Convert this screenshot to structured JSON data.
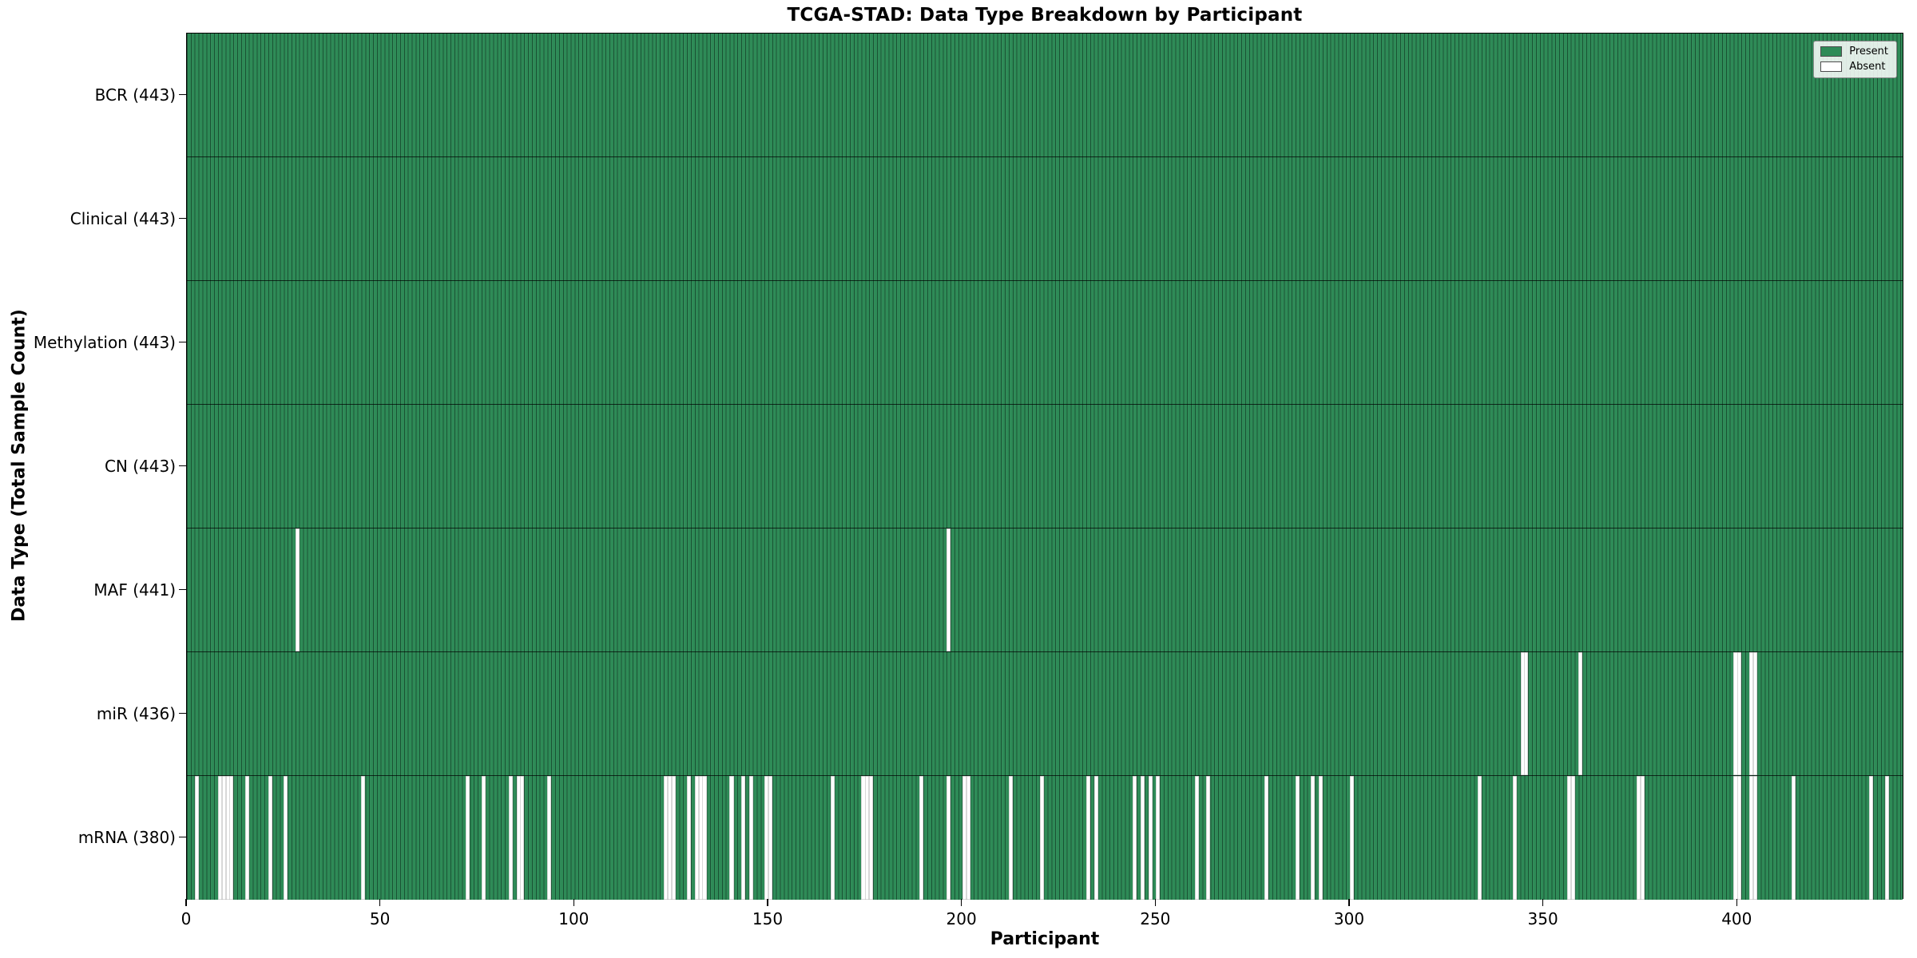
{
  "title": "TCGA-STAD: Data Type Breakdown by Participant",
  "xlabel": "Participant",
  "ylabel": "Data Type (Total Sample Count)",
  "legend": {
    "present_label": "Present",
    "absent_label": "Absent",
    "position": "upper right"
  },
  "colors": {
    "present": "#2E8B57",
    "absent": "#FFFFFF",
    "bar_edge": "#10341F",
    "spine": "#000000"
  },
  "chart_data": {
    "type": "heatmap",
    "title": "TCGA-STAD: Data Type Breakdown by Participant",
    "xlabel": "Participant",
    "ylabel": "Data Type (Total Sample Count)",
    "n_participants": 443,
    "x_range": [
      0,
      443
    ],
    "x_ticks": [
      0,
      50,
      100,
      150,
      200,
      250,
      300,
      350,
      400
    ],
    "grid": false,
    "legend_entries": [
      "Present",
      "Absent"
    ],
    "legend_position": "upper right",
    "cell_states": {
      "present": 1,
      "absent": 0
    },
    "rows": [
      {
        "name": "BCR",
        "label": "BCR (443)",
        "present_count": 443,
        "absent_participants": []
      },
      {
        "name": "Clinical",
        "label": "Clinical (443)",
        "present_count": 443,
        "absent_participants": []
      },
      {
        "name": "Methylation",
        "label": "Methylation (443)",
        "present_count": 443,
        "absent_participants": []
      },
      {
        "name": "CN",
        "label": "CN (443)",
        "present_count": 443,
        "absent_participants": []
      },
      {
        "name": "MAF",
        "label": "MAF (441)",
        "present_count": 441,
        "absent_participants": [
          28,
          196
        ]
      },
      {
        "name": "miR",
        "label": "miR (436)",
        "present_count": 436,
        "absent_participants": [
          344,
          345,
          359,
          399,
          400,
          403,
          404
        ]
      },
      {
        "name": "mRNA",
        "label": "mRNA (380)",
        "present_count": 380,
        "absent_participants": [
          2,
          8,
          9,
          10,
          11,
          15,
          21,
          25,
          45,
          72,
          76,
          83,
          85,
          86,
          93,
          123,
          124,
          125,
          129,
          131,
          132,
          133,
          140,
          143,
          145,
          149,
          150,
          166,
          174,
          175,
          176,
          189,
          196,
          200,
          201,
          212,
          220,
          232,
          234,
          244,
          246,
          248,
          250,
          260,
          263,
          278,
          286,
          290,
          292,
          300,
          333,
          342,
          356,
          357,
          374,
          375,
          399,
          400,
          403,
          404,
          414,
          434,
          438
        ]
      }
    ]
  }
}
